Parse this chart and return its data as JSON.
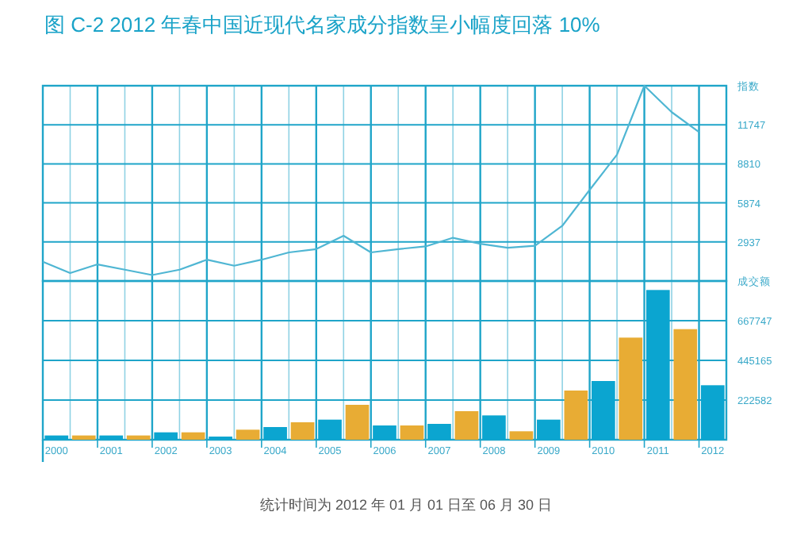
{
  "chart_data": [
    {
      "type": "line",
      "title": "图 C-2 2012 年春中国近现代名家成分指数呈小幅度回落 10%",
      "categories": [
        null,
        null,
        null,
        null,
        null,
        null,
        null,
        null,
        null,
        null,
        null,
        null,
        null,
        null,
        null,
        null,
        null,
        null,
        null,
        null,
        null,
        null,
        null,
        null,
        null
      ],
      "values": [
        1450,
        600,
        1250,
        850,
        450,
        850,
        1600,
        1150,
        1600,
        2150,
        2400,
        3400,
        2150,
        2400,
        2600,
        3250,
        2800,
        2500,
        2650,
        4150,
        6850,
        9500,
        14684,
        12700,
        11200
      ],
      "color": "#4fb6d3",
      "ylabel": "指数",
      "ylim": [
        0,
        14684
      ],
      "yticks": [
        2937,
        5874,
        8810,
        11747
      ],
      "grid": true,
      "tick_labels": "y"
    },
    {
      "type": "bar",
      "categories": [
        "2000",
        null,
        "2001",
        null,
        "2002",
        null,
        "2003",
        null,
        "2004",
        null,
        "2005",
        null,
        "2006",
        null,
        "2007",
        null,
        "2008",
        null,
        "2009",
        null,
        "2010",
        null,
        "2011",
        null,
        "2012"
      ],
      "values": [
        24000,
        24000,
        24000,
        24000,
        41600,
        41600,
        17800,
        56400,
        71200,
        98000,
        112800,
        195900,
        80100,
        80100,
        89000,
        160300,
        136500,
        47500,
        112800,
        276000,
        329400,
        572800,
        839900,
        620300,
        305700
      ],
      "colors": [
        "#0ba5d0",
        "#e8ac34",
        "#0ba5d0",
        "#e8ac34",
        "#0ba5d0",
        "#e8ac34",
        "#0ba5d0",
        "#e8ac34",
        "#0ba5d0",
        "#e8ac34",
        "#0ba5d0",
        "#e8ac34",
        "#0ba5d0",
        "#e8ac34",
        "#0ba5d0",
        "#e8ac34",
        "#0ba5d0",
        "#e8ac34",
        "#0ba5d0",
        "#e8ac34",
        "#0ba5d0",
        "#e8ac34",
        "#0ba5d0",
        "#e8ac34",
        "#0ba5d0"
      ],
      "ylabel": "成交额",
      "ylim": [
        0,
        890330
      ],
      "yticks": [
        222582,
        445165,
        667747
      ],
      "grid": true,
      "annotations": [
        "统计时间为 2012 年 01 月 01 日至 06 月 30 日"
      ]
    }
  ]
}
